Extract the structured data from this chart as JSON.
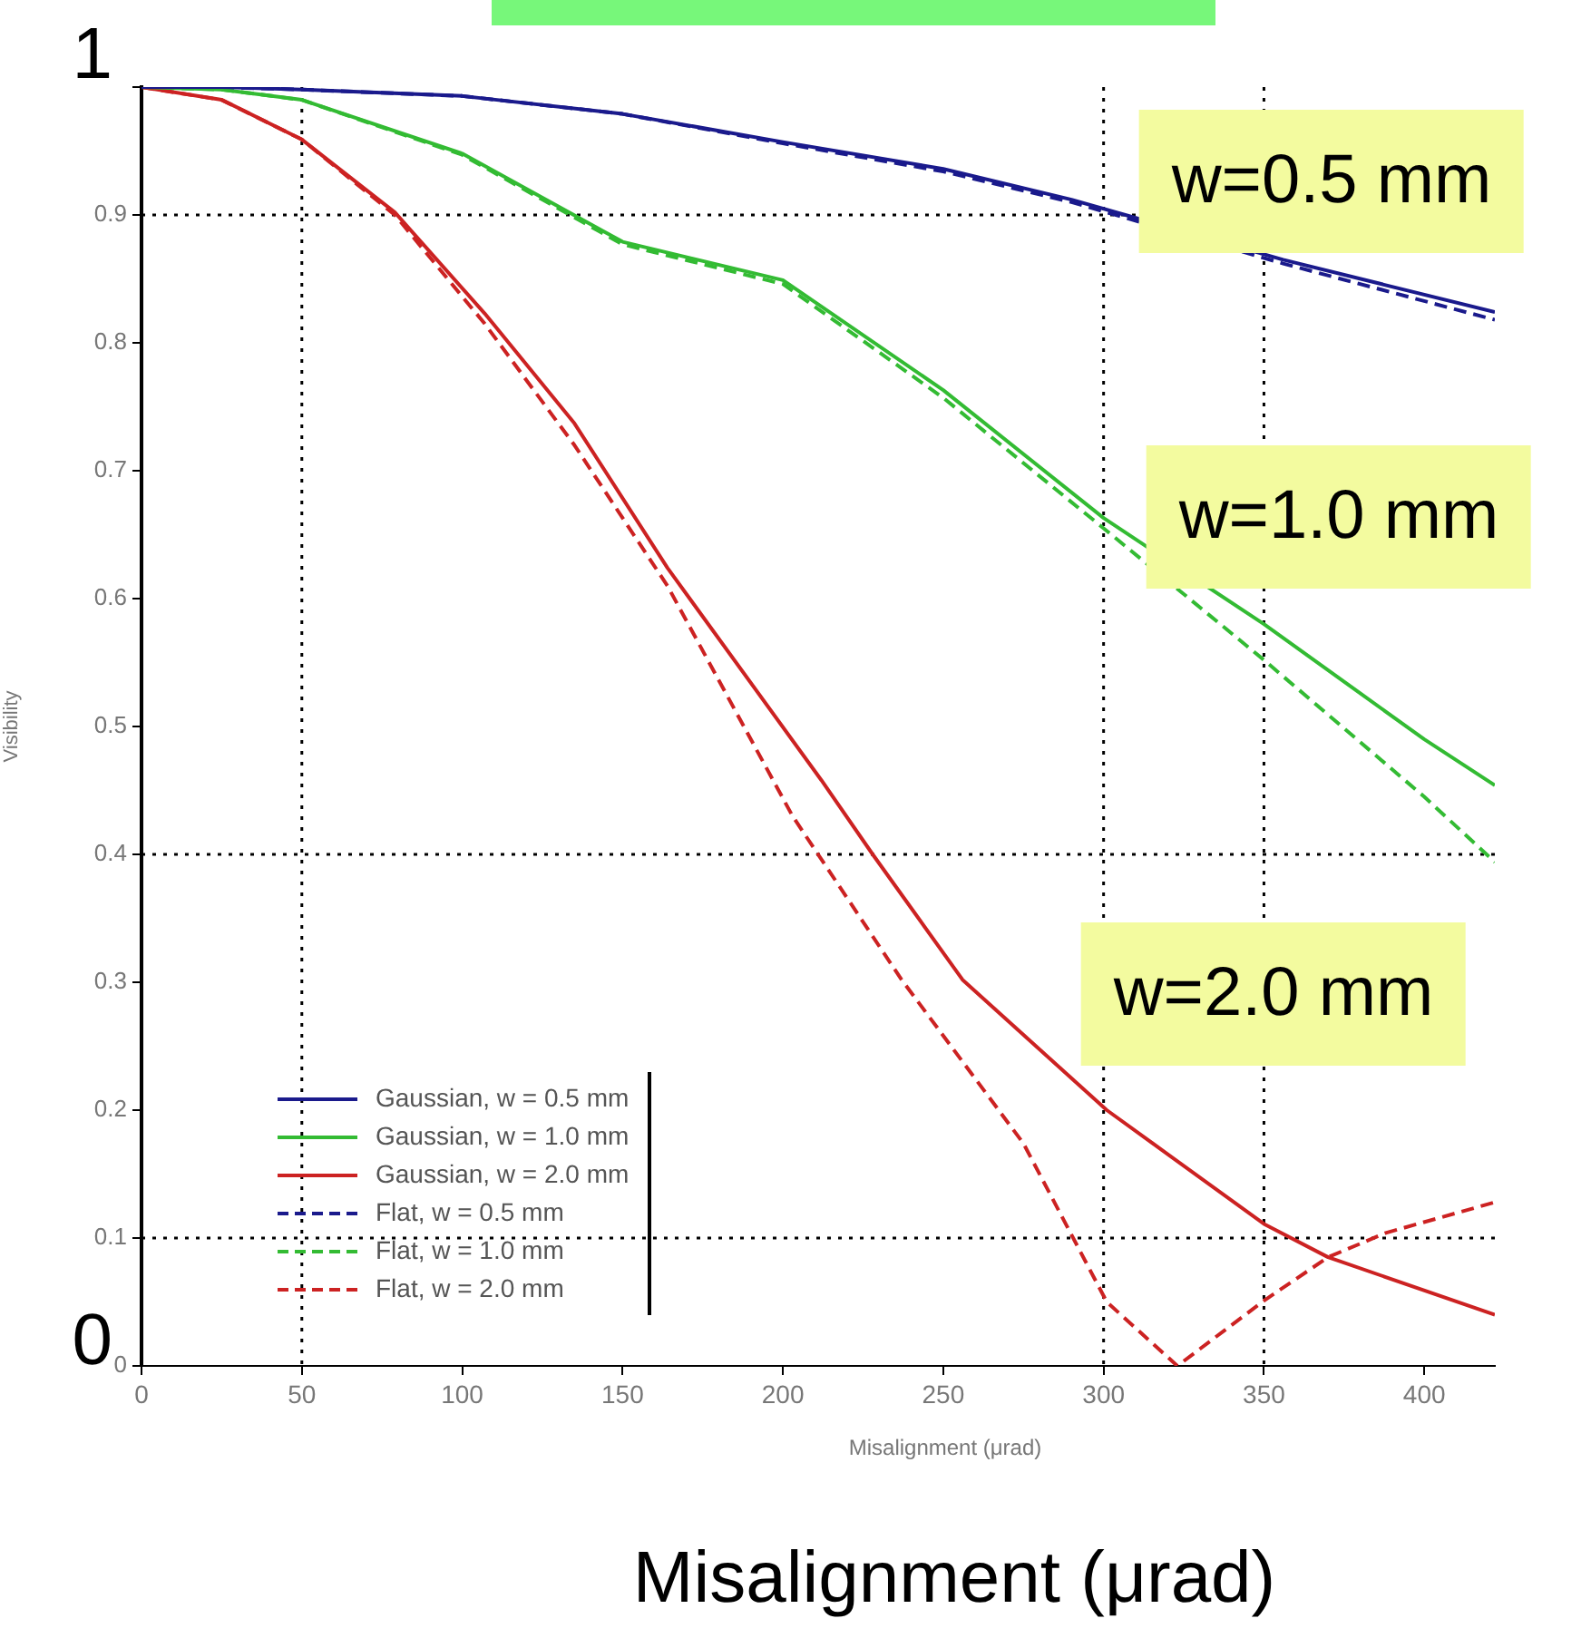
{
  "chart_data": {
    "type": "line",
    "xlabel": "Misalignment (μrad)",
    "ylabel": "Visibility",
    "xlim": [
      0,
      422
    ],
    "ylim": [
      0,
      1
    ],
    "xticks": [
      0,
      50,
      100,
      150,
      200,
      250,
      300,
      350,
      400
    ],
    "yticks": [
      0,
      0.1,
      0.2,
      0.3,
      0.4,
      0.5,
      0.6,
      0.7,
      0.8,
      0.9,
      {
        "value": 1,
        "label": null
      }
    ],
    "legend": "bottom left",
    "series": [
      {
        "name": "Gaussian, w = 0.5 mm",
        "color": "#1a1a8c",
        "line_style": "solid",
        "x": [
          0,
          25,
          50,
          100,
          150,
          200,
          250,
          290,
          356,
          422
        ],
        "values": [
          1,
          1,
          0.998,
          0.993,
          0.979,
          0.957,
          0.936,
          0.912,
          0.865,
          0.824
        ]
      },
      {
        "name": "Gaussian, w = 1.0 mm",
        "color": "#33bb33",
        "line_style": "solid",
        "x": [
          0,
          25,
          50,
          100,
          150,
          200,
          250,
          300,
          350,
          400,
          422
        ],
        "values": [
          1,
          0.998,
          0.99,
          0.948,
          0.879,
          0.849,
          0.763,
          0.663,
          0.58,
          0.49,
          0.454
        ]
      },
      {
        "name": "Gaussian, w = 2.0 mm",
        "color": "#cc2222",
        "line_style": "solid",
        "x": [
          0,
          25,
          50,
          79,
          107,
          135,
          164,
          212,
          228,
          256,
          301,
          350,
          370,
          422
        ],
        "values": [
          1,
          0.99,
          0.959,
          0.902,
          0.823,
          0.737,
          0.624,
          0.458,
          0.4,
          0.302,
          0.2,
          0.111,
          0.085,
          0.04
        ]
      },
      {
        "name": "Flat, w = 0.5 mm",
        "color": "#1a1a8c",
        "line_style": "dashed",
        "x": [
          0,
          25,
          50,
          100,
          150,
          200,
          250,
          290,
          356,
          422
        ],
        "values": [
          1,
          1,
          0.998,
          0.993,
          0.979,
          0.956,
          0.934,
          0.91,
          0.862,
          0.818
        ]
      },
      {
        "name": "Flat, w = 1.0 mm",
        "color": "#33bb33",
        "line_style": "dashed",
        "x": [
          0,
          25,
          50,
          100,
          150,
          200,
          250,
          300,
          350,
          400,
          422
        ],
        "values": [
          1,
          0.998,
          0.99,
          0.947,
          0.877,
          0.846,
          0.757,
          0.655,
          0.552,
          0.445,
          0.394
        ]
      },
      {
        "name": "Flat, w = 2.0 mm",
        "color": "#cc2222",
        "line_style": "dashed",
        "x": [
          0,
          25,
          50,
          79,
          107,
          135,
          164,
          203,
          237,
          275,
          301,
          323,
          350,
          370,
          388,
          422
        ],
        "values": [
          1,
          0.99,
          0.959,
          0.9,
          0.815,
          0.72,
          0.61,
          0.43,
          0.302,
          0.174,
          0.05,
          0,
          0.051,
          0.085,
          0.104,
          0.128
        ]
      }
    ],
    "ref_lines": [
      {
        "axis": "x",
        "value": 50,
        "color": "#000000",
        "line_style": "dotted"
      },
      {
        "axis": "x",
        "value": 300,
        "color": "#000000",
        "line_style": "dotted"
      },
      {
        "axis": "x",
        "value": 350,
        "color": "#000000",
        "line_style": "dotted"
      },
      {
        "axis": "y",
        "value": 0.9,
        "color": "#000000",
        "line_style": "dotted"
      },
      {
        "axis": "y",
        "value": 0.4,
        "color": "#000000",
        "line_style": "dotted"
      },
      {
        "axis": "y",
        "value": 0.1,
        "color": "#000000",
        "line_style": "dotted"
      }
    ],
    "annotations": [
      "w=0.5 mm",
      "w=1.0 mm",
      "w=2.0 mm",
      "Misalignment (μrad)",
      "1",
      "0"
    ]
  }
}
